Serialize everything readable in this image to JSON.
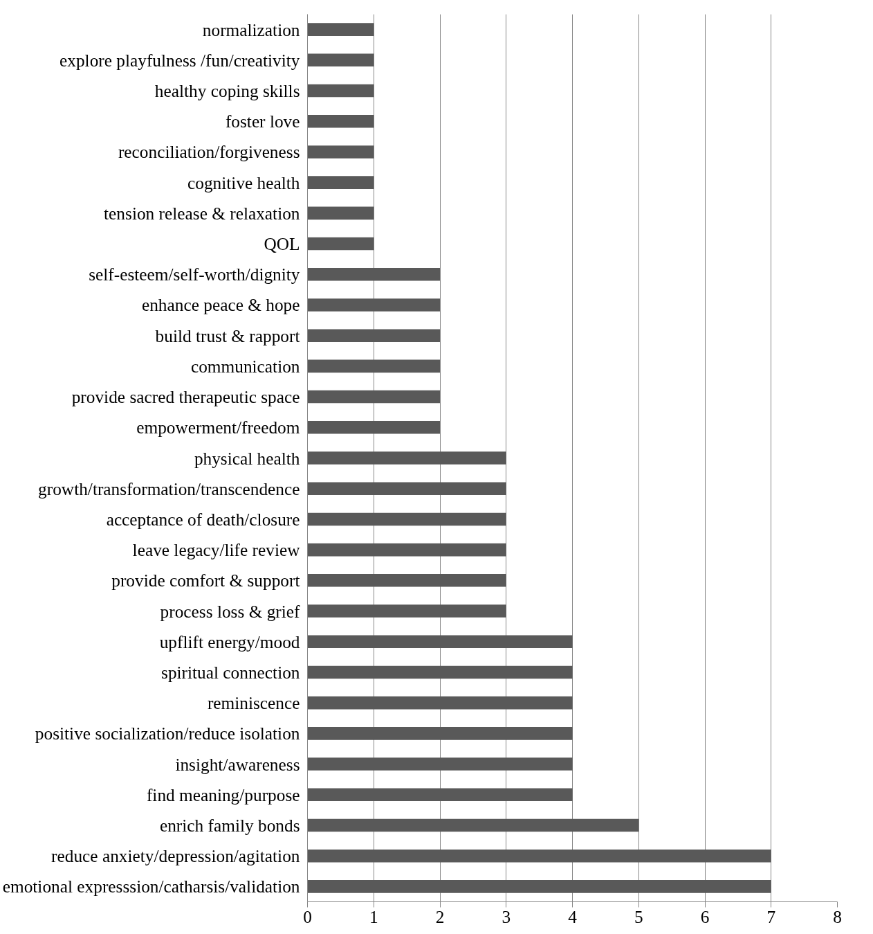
{
  "chart_data": {
    "type": "bar",
    "orientation": "horizontal",
    "categories": [
      "normalization",
      "explore playfulness /fun/creativity",
      "healthy coping skills",
      "foster love",
      "reconciliation/forgiveness",
      "cognitive health",
      "tension release & relaxation",
      "QOL",
      "self-esteem/self-worth/dignity",
      "enhance peace & hope",
      "build trust & rapport",
      "communication",
      "provide sacred therapeutic space",
      "empowerment/freedom",
      "physical health",
      "growth/transformation/transcendence",
      "acceptance of death/closure",
      "leave legacy/life review",
      "provide comfort & support",
      "process loss & grief",
      "upflift energy/mood",
      "spiritual connection",
      "reminiscence",
      "positive socialization/reduce isolation",
      "insight/awareness",
      "find meaning/purpose",
      "enrich family bonds",
      "reduce anxiety/depression/agitation",
      "emotional expresssion/catharsis/validation"
    ],
    "values": [
      1,
      1,
      1,
      1,
      1,
      1,
      1,
      1,
      2,
      2,
      2,
      2,
      2,
      2,
      3,
      3,
      3,
      3,
      3,
      3,
      4,
      4,
      4,
      4,
      4,
      4,
      5,
      7,
      7
    ],
    "color": "#595959",
    "xlim": [
      0,
      8
    ],
    "xticks": [
      0,
      1,
      2,
      3,
      4,
      5,
      6,
      7,
      8
    ],
    "grid": "x"
  }
}
